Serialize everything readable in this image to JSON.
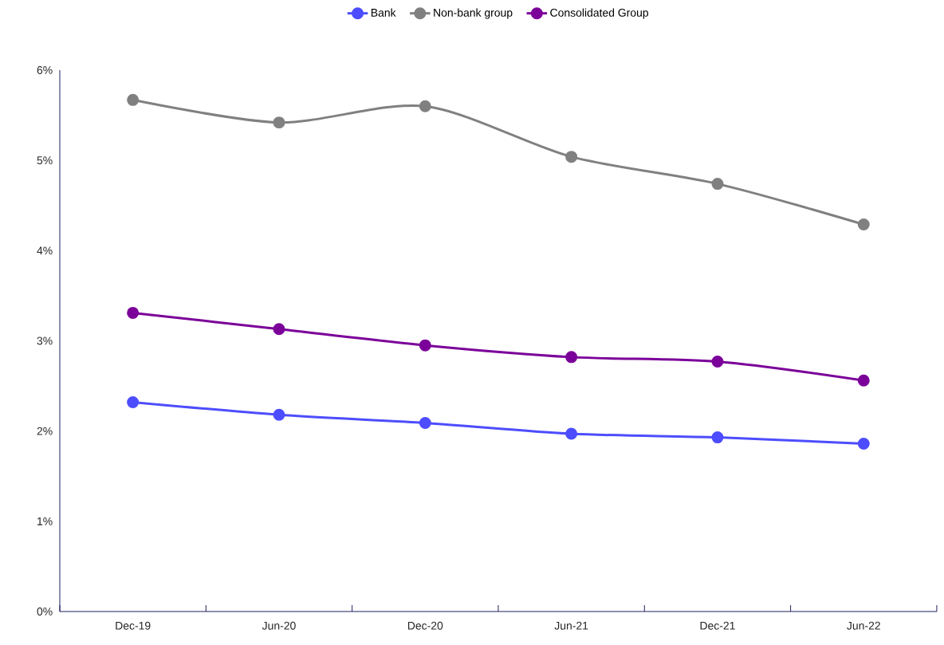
{
  "chart_data": {
    "type": "line",
    "categories": [
      "Dec-19",
      "Jun-20",
      "Dec-20",
      "Jun-21",
      "Dec-21",
      "Jun-22"
    ],
    "series": [
      {
        "name": "Bank",
        "color": "#4d4dff",
        "values": [
          2.32,
          2.18,
          2.09,
          1.97,
          1.93,
          1.86
        ]
      },
      {
        "name": "Non-bank group",
        "color": "#808080",
        "values": [
          5.67,
          5.42,
          5.6,
          5.04,
          4.74,
          4.29
        ]
      },
      {
        "name": "Consolidated Group",
        "color": "#7b0099",
        "values": [
          3.31,
          3.13,
          2.95,
          2.82,
          2.77,
          2.56
        ]
      }
    ],
    "ylim": [
      0,
      6
    ],
    "yticks": [
      {
        "value": 0,
        "label": "0%"
      },
      {
        "value": 1,
        "label": "1%"
      },
      {
        "value": 2,
        "label": "2%"
      },
      {
        "value": 3,
        "label": "3%"
      },
      {
        "value": 4,
        "label": "4%"
      },
      {
        "value": 5,
        "label": "5%"
      },
      {
        "value": 6,
        "label": "6%"
      }
    ],
    "grid": false,
    "legend": "top",
    "marker": "circle",
    "line_style": "solid"
  }
}
